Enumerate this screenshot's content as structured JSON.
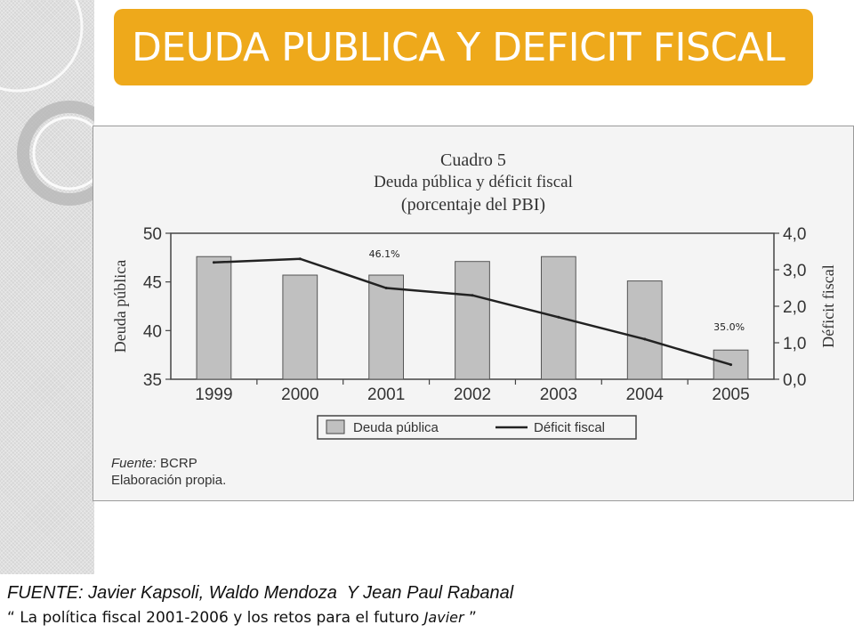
{
  "slide": {
    "title": "DEUDA PUBLICA Y DEFICIT FISCAL",
    "source_line1": "FUENTE: Javier Kapsoli, Waldo Mendoza  Y Jean Paul Rabanal",
    "source_line2_prefix": "“ La política fiscal 2001-2006 y los retos para el futuro ",
    "source_line2_author": "Javier",
    "source_line2_suffix": " ”"
  },
  "chart_data": {
    "type": "bar",
    "title": "Cuadro 5",
    "subtitle": "Deuda pública y déficit fiscal",
    "subtitle2": "(porcentaje del PBI)",
    "categories": [
      "1999",
      "2000",
      "2001",
      "2002",
      "2003",
      "2004",
      "2005"
    ],
    "series": [
      {
        "name": "Deuda pública",
        "type": "bar",
        "axis": "left",
        "color": "#c0c0c0",
        "values": [
          47.6,
          45.7,
          45.7,
          47.1,
          47.6,
          45.1,
          38.0
        ]
      },
      {
        "name": "Déficit fiscal",
        "type": "line",
        "axis": "right",
        "color": "#222222",
        "values": [
          3.2,
          3.3,
          2.5,
          2.3,
          1.7,
          1.1,
          0.4
        ]
      }
    ],
    "ylabel_left": "Deuda pública",
    "ylabel_right": "Déficit fiscal",
    "ylim_left": [
      35,
      50
    ],
    "yticks_left": [
      "35",
      "40",
      "45",
      "50"
    ],
    "ylim_right": [
      0,
      4
    ],
    "yticks_right": [
      "0,0",
      "1,0",
      "2,0",
      "3,0",
      "4,0"
    ],
    "annotations": [
      "46.1%",
      "35.0%"
    ],
    "legend_position": "bottom",
    "footnote_line1_label": "Fuente:",
    "footnote_line1_value": " BCRP",
    "footnote_line2": "Elaboración propia."
  }
}
